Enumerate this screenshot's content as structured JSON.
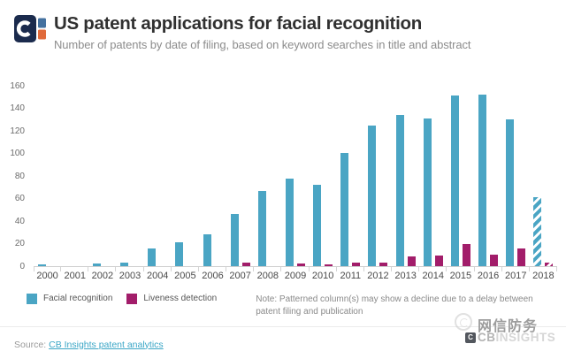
{
  "header": {
    "title": "US patent applications for facial recognition",
    "subtitle": "Number of patents by date of filing, based on keyword searches in title and abstract"
  },
  "chart_data": {
    "type": "bar",
    "title": "US patent applications for facial recognition",
    "subtitle": "Number of patents by date of filing, based on keyword searches in title and abstract",
    "categories": [
      "2000",
      "2001",
      "2002",
      "2003",
      "2004",
      "2005",
      "2006",
      "2007",
      "2008",
      "2009",
      "2010",
      "2011",
      "2012",
      "2013",
      "2014",
      "2015",
      "2016",
      "2017",
      "2018"
    ],
    "series": [
      {
        "name": "Facial recognition",
        "color": "#4aa5c4",
        "values": [
          1,
          0,
          2,
          3,
          15,
          21,
          28,
          46,
          66,
          77,
          72,
          100,
          124,
          134,
          131,
          151,
          152,
          130,
          61
        ]
      },
      {
        "name": "Liveness detection",
        "color": "#a21d6a",
        "values": [
          0,
          0,
          0,
          0,
          0,
          0,
          0,
          3,
          0,
          2,
          1,
          3,
          3,
          8,
          9,
          19,
          10,
          15,
          3
        ]
      }
    ],
    "patterned_categories": [
      "2018"
    ],
    "ylim": [
      0,
      160
    ],
    "ytick_step": 20,
    "grid": false,
    "legend_position": "bottom-left",
    "xlabel": "",
    "ylabel": ""
  },
  "note": "Note: Patterned column(s) may show a decline due to a delay between patent filing and publication",
  "footer": {
    "source_prefix": "Source:",
    "source_link": "CB Insights patent analytics"
  },
  "watermark": {
    "cn_text": "网信防务",
    "brand_cb": "CB",
    "brand_rest": "INSIGHTS"
  },
  "colors": {
    "facial": "#4aa5c4",
    "liveness": "#a21d6a",
    "link": "#3aa6c6",
    "logo_navy": "#1b2b4d",
    "logo_blue": "#44719f",
    "logo_orange": "#e06a3b"
  }
}
